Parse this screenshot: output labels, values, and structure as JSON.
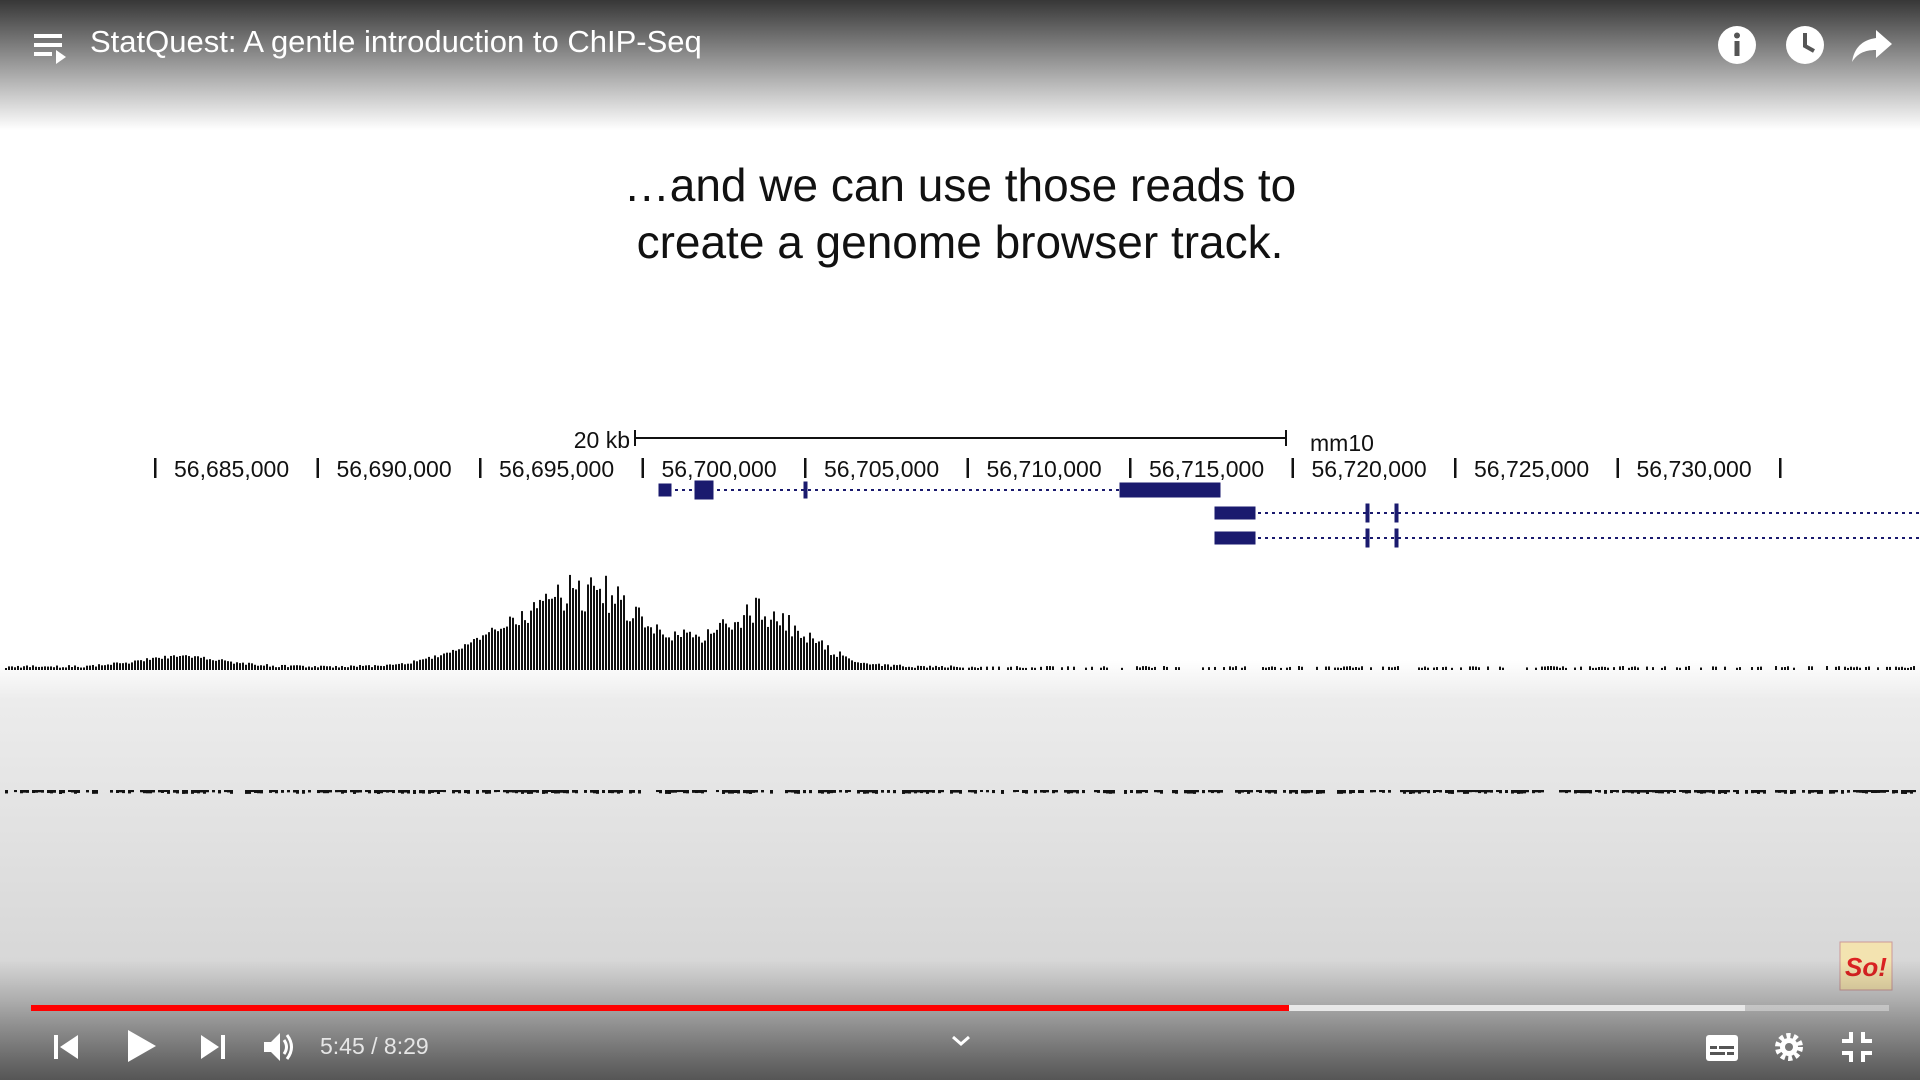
{
  "header": {
    "title": "StatQuest: A gentle introduction to ChIP-Seq"
  },
  "slide": {
    "caption_lines": [
      "…and we can use those reads to",
      "create a genome browser track."
    ],
    "scale_label": "20 kb",
    "assembly": "mm10",
    "coordinates": [
      "56,685,000",
      "56,690,000",
      "56,695,000",
      "56,700,000",
      "56,705,000",
      "56,710,000",
      "56,715,000",
      "56,720,000",
      "56,725,000",
      "56,730,000"
    ]
  },
  "player": {
    "time": "5:45 / 8:29",
    "logo": "So!"
  }
}
